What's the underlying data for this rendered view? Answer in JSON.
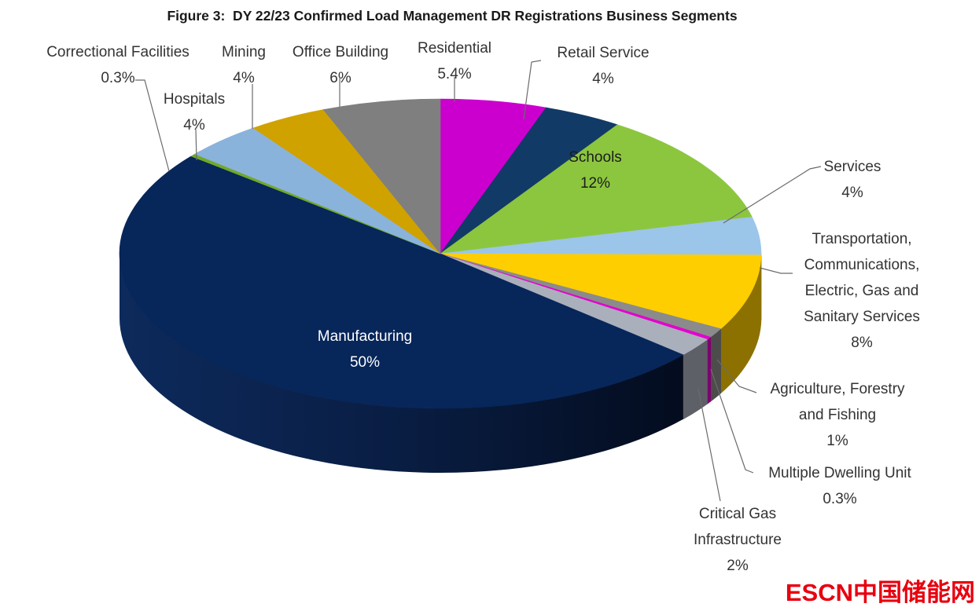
{
  "chart_data": {
    "type": "pie",
    "is_3d": true,
    "title": "Figure 3:  DY 22/23 Confirmed Load Management DR Registrations Business Segments",
    "start_at_top": true,
    "clockwise": true,
    "legend_position": "none",
    "segments": [
      {
        "key": "residential",
        "label": "Residential",
        "pct": 5.4,
        "pct_label": "5.4%",
        "color": "#CB00CE",
        "label_lines": [
          "Residential",
          "5.4%"
        ]
      },
      {
        "key": "retail-service",
        "label": "Retail Service",
        "pct": 4,
        "pct_label": "4%",
        "color": "#123A66",
        "label_lines": [
          "Retail Service",
          "4%"
        ]
      },
      {
        "key": "schools",
        "label": "Schools",
        "pct": 12,
        "pct_label": "12%",
        "color": "#8CC63E",
        "label_lines": [
          "Schools",
          "12%"
        ]
      },
      {
        "key": "services",
        "label": "Services",
        "pct": 4,
        "pct_label": "4%",
        "color": "#9CC5EA",
        "label_lines": [
          "Services",
          "4%"
        ]
      },
      {
        "key": "transportation",
        "label": "Transportation, Communications, Electric, Gas and Sanitary Services",
        "pct": 8,
        "pct_label": "8%",
        "color": "#FFCE00",
        "label_lines": [
          "Transportation,",
          "Communications,",
          "Electric, Gas and",
          "Sanitary Services",
          "8%"
        ]
      },
      {
        "key": "agriculture",
        "label": "Agriculture, Forestry and Fishing",
        "pct": 1,
        "pct_label": "1%",
        "color": "#8B8B8B",
        "label_lines": [
          "Agriculture, Forestry",
          "and Fishing",
          "1%"
        ]
      },
      {
        "key": "multiple-dwelling-unit",
        "label": "Multiple Dwelling Unit",
        "pct": 0.3,
        "pct_label": "0.3%",
        "color": "#E400CE",
        "label_lines": [
          "Multiple Dwelling Unit",
          "0.3%"
        ]
      },
      {
        "key": "critical-gas",
        "label": "Critical Gas Infrastructure",
        "pct": 2,
        "pct_label": "2%",
        "color": "#AAAFBC",
        "label_lines": [
          "Critical Gas",
          "Infrastructure",
          "2%"
        ]
      },
      {
        "key": "manufacturing",
        "label": "Manufacturing",
        "pct": 50,
        "pct_label": "50%",
        "color": "#07265A",
        "label_lines": [
          "Manufacturing",
          "50%"
        ]
      },
      {
        "key": "correctional",
        "label": "Correctional Facilities",
        "pct": 0.3,
        "pct_label": "0.3%",
        "color": "#70A829",
        "label_lines": [
          "Correctional Facilities",
          "0.3%"
        ]
      },
      {
        "key": "hospitals",
        "label": "Hospitals",
        "pct": 4,
        "pct_label": "4%",
        "color": "#8AB3DC",
        "label_lines": [
          "Hospitals",
          "4%"
        ]
      },
      {
        "key": "mining",
        "label": "Mining",
        "pct": 4,
        "pct_label": "4%",
        "color": "#CFA200",
        "label_lines": [
          "Mining",
          "4%"
        ]
      },
      {
        "key": "office-building",
        "label": "Office Building",
        "pct": 6,
        "pct_label": "6%",
        "color": "#7F7F7F",
        "label_lines": [
          "Office Building",
          "6%"
        ]
      }
    ]
  },
  "watermark": {
    "text_latin": "ESCN",
    "text_cjk": "中国储能网",
    "color": "#E8000F"
  }
}
